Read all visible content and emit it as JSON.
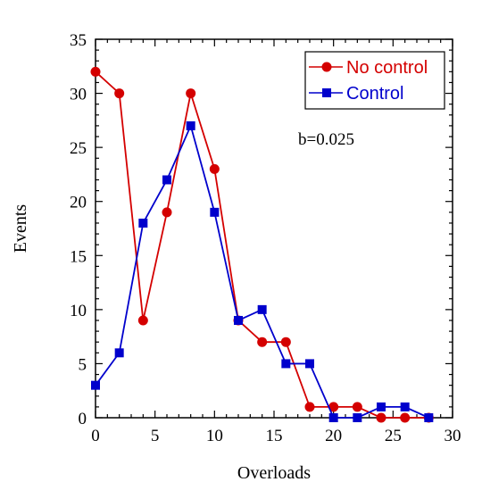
{
  "chart_data": {
    "type": "line",
    "xlabel": "Overloads",
    "ylabel": "Events",
    "xlim": [
      0,
      30
    ],
    "ylim": [
      0,
      35
    ],
    "xticks": [
      0,
      5,
      10,
      15,
      20,
      25,
      30
    ],
    "yticks": [
      0,
      5,
      10,
      15,
      20,
      25,
      30,
      35
    ],
    "grid": false,
    "legend_position": "top-right",
    "annotation": "b=0.025",
    "series": [
      {
        "name": "No control",
        "color": "#d40000",
        "marker": "circle",
        "x": [
          0,
          2,
          4,
          6,
          8,
          10,
          12,
          14,
          16,
          18,
          20,
          22,
          24,
          26,
          28
        ],
        "values": [
          32,
          30,
          9,
          19,
          30,
          23,
          9,
          7,
          7,
          1,
          1,
          1,
          0,
          0,
          0
        ]
      },
      {
        "name": "Control",
        "color": "#0000cc",
        "marker": "square",
        "x": [
          0,
          2,
          4,
          6,
          8,
          10,
          12,
          14,
          16,
          18,
          20,
          22,
          24,
          26,
          28
        ],
        "values": [
          3,
          6,
          18,
          22,
          27,
          19,
          9,
          10,
          5,
          5,
          0,
          0,
          1,
          1,
          0
        ]
      }
    ]
  }
}
